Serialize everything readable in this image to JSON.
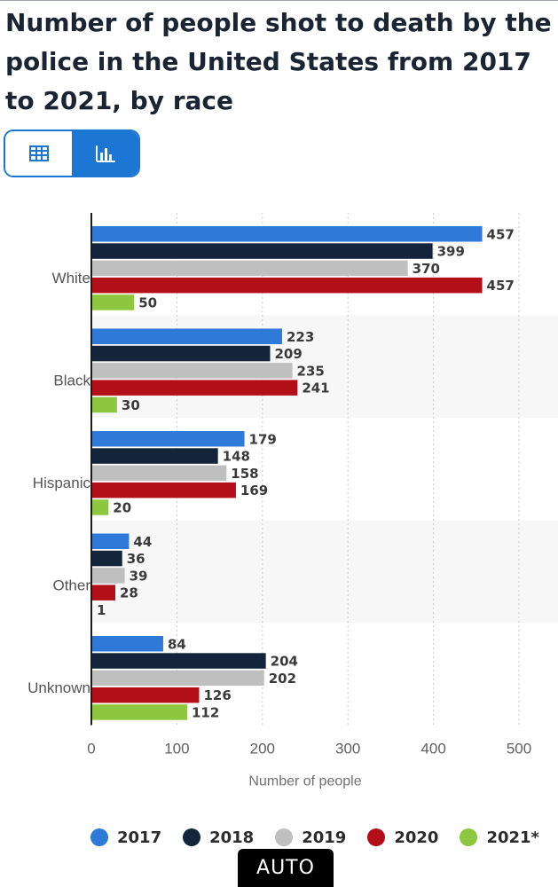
{
  "title": "Number of people shot to death by the police in the United States from 2017 to 2021, by race",
  "toggle": {
    "table_icon": "table-icon",
    "chart_icon": "bar-chart-icon",
    "active": "chart",
    "accent": "#1b77d3"
  },
  "auto_badge": "AUTO",
  "chart_data": {
    "type": "bar",
    "orientation": "horizontal",
    "categories": [
      "White",
      "Black",
      "Hispanic",
      "Other",
      "Unknown"
    ],
    "series": [
      {
        "name": "2017",
        "color": "#2f7ad8",
        "values": [
          457,
          223,
          179,
          44,
          84
        ]
      },
      {
        "name": "2018",
        "color": "#13243b",
        "values": [
          399,
          209,
          148,
          36,
          204
        ]
      },
      {
        "name": "2019",
        "color": "#bfbfbf",
        "values": [
          370,
          235,
          158,
          39,
          202
        ]
      },
      {
        "name": "2020",
        "color": "#b30f18",
        "values": [
          457,
          241,
          169,
          28,
          126
        ]
      },
      {
        "name": "2021*",
        "color": "#8dc63f",
        "values": [
          50,
          30,
          20,
          1,
          112
        ]
      }
    ],
    "xlabel": "Number of people",
    "xlim": [
      0,
      500
    ],
    "xticks": [
      0,
      100,
      200,
      300,
      400,
      500
    ],
    "grid": true,
    "data_labels": true,
    "legend_position": "bottom"
  }
}
